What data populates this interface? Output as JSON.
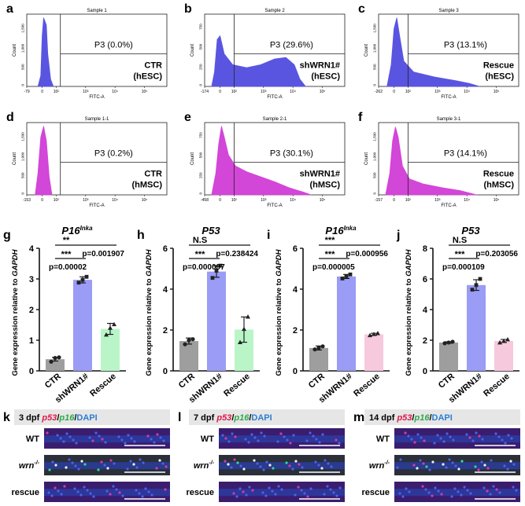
{
  "flow_panels": [
    {
      "letter": "a",
      "sample": "Sample 1",
      "gate": "P3",
      "pct": "(0.0%)",
      "cond": "CTR",
      "cell": "(hESC)",
      "xaxis": "FITC-A",
      "yaxis": "Count",
      "color": "#5a55e0"
    },
    {
      "letter": "b",
      "sample": "Sample 2",
      "gate": "P3",
      "pct": "(29.6%)",
      "cond": "shWRN1#",
      "cell": "(hESC)",
      "xaxis": "FITC-A",
      "yaxis": "Count",
      "color": "#5a55e0"
    },
    {
      "letter": "c",
      "sample": "Sample 3",
      "gate": "P3",
      "pct": "(13.1%)",
      "cond": "Rescue",
      "cell": "(hESC)",
      "xaxis": "FITC-A",
      "yaxis": "Count",
      "color": "#5a55e0"
    },
    {
      "letter": "d",
      "sample": "Sample 1-1",
      "gate": "P3",
      "pct": "(0.2%)",
      "cond": "CTR",
      "cell": "(hMSC)",
      "xaxis": "FITC-A",
      "yaxis": "Count",
      "color": "#d246d8"
    },
    {
      "letter": "e",
      "sample": "Sample 2-1",
      "gate": "P3",
      "pct": "(30.1%)",
      "cond": "shWRN1#",
      "cell": "(hMSC)",
      "xaxis": "FITC-A",
      "yaxis": "Count",
      "color": "#d246d8"
    },
    {
      "letter": "f",
      "sample": "Sample 3-1",
      "gate": "P3",
      "pct": "(14.1%)",
      "cond": "Rescue",
      "cell": "(hMSC)",
      "xaxis": "FITC-A",
      "yaxis": "Count",
      "color": "#d246d8"
    }
  ],
  "chart_data": [
    {
      "type": "bar",
      "letter": "g",
      "title": "P16",
      "title_sup": "Inka",
      "ylabel": "Gene expression relative to GAPDH",
      "categories": [
        "CTR",
        "shWRN1#",
        "Rescue"
      ],
      "values": [
        0.38,
        2.97,
        1.37
      ],
      "errors": [
        0.06,
        0.1,
        0.18
      ],
      "points": [
        [
          0.3,
          0.42,
          0.44
        ],
        [
          2.88,
          2.97,
          3.07
        ],
        [
          1.18,
          1.4,
          1.52
        ]
      ],
      "ylim": [
        0,
        4
      ],
      "yticks": [
        0,
        1,
        2,
        3,
        4
      ],
      "bar_colors": [
        "#9e9e9e",
        "#9a9cf5",
        "#b9f5c7"
      ],
      "point_markers": [
        "circle",
        "square",
        "triangle"
      ],
      "annotations": [
        {
          "text": "**",
          "from": 0,
          "to": 2,
          "pval": "p=0.001907"
        },
        {
          "text": "***",
          "from": 0,
          "to": 1,
          "pval": "p=0.00002"
        }
      ]
    },
    {
      "type": "bar",
      "letter": "h",
      "title": "P53",
      "title_sup": "",
      "ylabel": "Gene expression relative to GAPDH",
      "categories": [
        "CTR",
        "shWRN1#",
        "Rescue"
      ],
      "values": [
        1.46,
        4.86,
        2.02
      ],
      "errors": [
        0.15,
        0.28,
        0.62
      ],
      "points": [
        [
          1.3,
          1.5,
          1.55
        ],
        [
          4.55,
          4.9,
          5.15
        ],
        [
          1.4,
          2.05,
          2.65
        ]
      ],
      "ylim": [
        0,
        6
      ],
      "yticks": [
        0,
        2,
        4,
        6
      ],
      "bar_colors": [
        "#9e9e9e",
        "#9a9cf5",
        "#b9f5c7"
      ],
      "point_markers": [
        "circle",
        "square",
        "triangle"
      ],
      "annotations": [
        {
          "text": "N.S",
          "from": 0,
          "to": 2,
          "pval": "p=0.238424"
        },
        {
          "text": "***",
          "from": 0,
          "to": 1,
          "pval": "p=0.000097"
        }
      ]
    },
    {
      "type": "bar",
      "letter": "i",
      "title": "P16",
      "title_sup": "Inka",
      "ylabel": "Gene expression relative to GAPDH",
      "categories": [
        "CTR",
        "shWRN1#",
        "Rescue"
      ],
      "values": [
        1.12,
        4.62,
        1.79
      ],
      "errors": [
        0.1,
        0.1,
        0.05
      ],
      "points": [
        [
          1.05,
          1.13,
          1.2
        ],
        [
          4.52,
          4.64,
          4.72
        ],
        [
          1.74,
          1.8,
          1.84
        ]
      ],
      "ylim": [
        0,
        6
      ],
      "yticks": [
        0,
        2,
        4,
        6
      ],
      "bar_colors": [
        "#9e9e9e",
        "#9a9cf5",
        "#f7c9dd"
      ],
      "point_markers": [
        "circle",
        "square",
        "triangle"
      ],
      "annotations": [
        {
          "text": "***",
          "from": 0,
          "to": 2,
          "pval": "p=0.000956"
        },
        {
          "text": "***",
          "from": 0,
          "to": 1,
          "pval": "p=0.000005"
        }
      ]
    },
    {
      "type": "bar",
      "letter": "j",
      "title": "P53",
      "title_sup": "",
      "ylabel": "Gene expression relative to GAPDH",
      "categories": [
        "CTR",
        "shWRN1#",
        "Rescue"
      ],
      "values": [
        1.85,
        5.6,
        1.95
      ],
      "errors": [
        0.05,
        0.35,
        0.1
      ],
      "points": [
        [
          1.8,
          1.85,
          1.9
        ],
        [
          5.3,
          5.6,
          6.0
        ],
        [
          1.85,
          1.95,
          2.05
        ]
      ],
      "ylim": [
        0,
        8
      ],
      "yticks": [
        0,
        2,
        4,
        6,
        8
      ],
      "bar_colors": [
        "#9e9e9e",
        "#9a9cf5",
        "#f7c9dd"
      ],
      "point_markers": [
        "circle",
        "square",
        "triangle"
      ],
      "annotations": [
        {
          "text": "N.S",
          "from": 0,
          "to": 2,
          "pval": "p=0.203056"
        },
        {
          "text": "***",
          "from": 0,
          "to": 1,
          "pval": "p=0.000109"
        }
      ]
    }
  ],
  "fish_panels": [
    {
      "letter": "k",
      "time": "3 dpf",
      "rows": [
        "WT",
        "wrn",
        "rescue"
      ]
    },
    {
      "letter": "l",
      "time": "7 dpf",
      "rows": [
        "WT",
        "wrn",
        "rescue"
      ]
    },
    {
      "letter": "m",
      "time": "14 dpf",
      "rows": [
        "WT",
        "wrn",
        "rescue"
      ]
    }
  ],
  "fish_stain": {
    "p53": "p53",
    "p16": "p16",
    "dapi": "DAPI",
    "sep": "/",
    "wrn_sup": "-/-",
    "colors": {
      "p53": "#e0184a",
      "p16": "#2ea84a",
      "dapi": "#2a7fd4"
    }
  }
}
